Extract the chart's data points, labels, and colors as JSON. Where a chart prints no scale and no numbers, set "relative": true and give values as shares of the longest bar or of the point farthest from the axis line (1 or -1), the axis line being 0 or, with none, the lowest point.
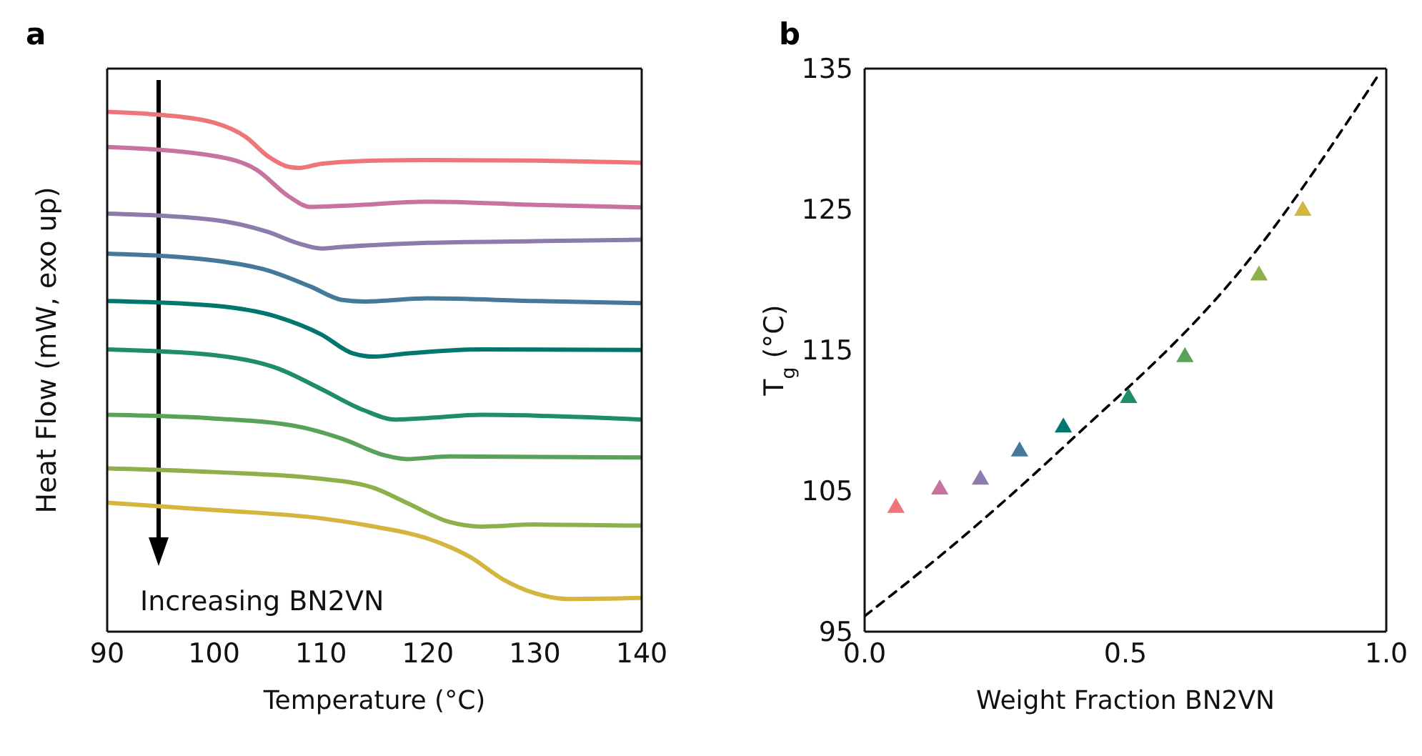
{
  "chart_data": [
    {
      "type": "line",
      "title": "a",
      "xlabel": "Temperature (°C)",
      "ylabel": "Heat Flow (mW, exo up)",
      "relative": true,
      "xlim": [
        90,
        140
      ],
      "xticks": [
        90,
        100,
        110,
        120,
        130,
        140
      ],
      "tick_labels": "x",
      "marker": "none",
      "line_style": "solid",
      "annotations": [
        "Increasing BN2VN"
      ],
      "series": [
        {
          "color": "#ee7579",
          "x": [
            90,
            95,
            100,
            103,
            105,
            107,
            108,
            110,
            115,
            120,
            130,
            140
          ],
          "values": [
            1.0,
            0.994,
            0.979,
            0.951,
            0.915,
            0.894,
            0.892,
            0.9,
            0.906,
            0.907,
            0.906,
            0.902
          ]
        },
        {
          "color": "#c872a0",
          "x": [
            90,
            100,
            104,
            107,
            109,
            112,
            120,
            130,
            140
          ],
          "values": [
            0.932,
            0.915,
            0.888,
            0.837,
            0.817,
            0.819,
            0.827,
            0.821,
            0.816
          ]
        },
        {
          "color": "#8c7cad",
          "x": [
            90,
            100,
            105,
            108,
            110,
            112,
            120,
            130,
            140
          ],
          "values": [
            0.804,
            0.792,
            0.769,
            0.746,
            0.737,
            0.74,
            0.748,
            0.751,
            0.754
          ]
        },
        {
          "color": "#44799a",
          "x": [
            90,
            100,
            105,
            109,
            112,
            114,
            120,
            130,
            140
          ],
          "values": [
            0.727,
            0.714,
            0.695,
            0.664,
            0.638,
            0.635,
            0.641,
            0.636,
            0.632
          ]
        },
        {
          "color": "#00766f",
          "x": [
            90,
            100,
            106,
            110,
            113,
            115,
            118,
            125,
            140
          ],
          "values": [
            0.636,
            0.627,
            0.605,
            0.572,
            0.535,
            0.529,
            0.535,
            0.543,
            0.542
          ]
        },
        {
          "color": "#1f8c6c",
          "x": [
            90,
            100,
            106,
            110,
            114,
            117,
            120,
            125,
            140
          ],
          "values": [
            0.543,
            0.532,
            0.506,
            0.467,
            0.426,
            0.408,
            0.411,
            0.417,
            0.408
          ]
        },
        {
          "color": "#5aa25a",
          "x": [
            90,
            100,
            108,
            112,
            116,
            118,
            122,
            140
          ],
          "values": [
            0.417,
            0.41,
            0.394,
            0.371,
            0.339,
            0.332,
            0.337,
            0.335
          ]
        },
        {
          "color": "#8db04a",
          "x": [
            90,
            100,
            110,
            115,
            118,
            122,
            125,
            130,
            140
          ],
          "values": [
            0.314,
            0.307,
            0.294,
            0.276,
            0.248,
            0.211,
            0.202,
            0.206,
            0.204
          ]
        },
        {
          "color": "#d4b540",
          "x": [
            90,
            100,
            110,
            115,
            120,
            124,
            127,
            130,
            133,
            140
          ],
          "values": [
            0.248,
            0.234,
            0.218,
            0.202,
            0.179,
            0.143,
            0.101,
            0.074,
            0.063,
            0.065
          ]
        }
      ]
    },
    {
      "type": "scatter",
      "title": "b",
      "xlabel": "Weight Fraction BN2VN",
      "ylabel": "T$_{g}$ (°C)",
      "xlim": [
        0,
        1
      ],
      "xticks": [
        {
          "value": 0,
          "label": "0.0"
        },
        {
          "value": 0.5,
          "label": "0.5"
        },
        {
          "value": 1,
          "label": "1.0"
        }
      ],
      "ylim": [
        95,
        135
      ],
      "yticks": [
        95,
        105,
        115,
        125,
        135
      ],
      "series": [
        {
          "type": "scatter",
          "marker": "triangle",
          "x": [
            0.06,
            0.144,
            0.222,
            0.297,
            0.381,
            0.506,
            0.614,
            0.756,
            0.84
          ],
          "values": [
            103.8,
            105.1,
            105.8,
            107.8,
            109.5,
            111.6,
            114.5,
            120.3,
            124.9
          ],
          "colors": [
            "#ee7579",
            "#c872a0",
            "#8c7cad",
            "#44799a",
            "#00766f",
            "#1f8c6c",
            "#5aa25a",
            "#8db04a",
            "#d4b540"
          ]
        },
        {
          "type": "line",
          "marker": "none",
          "line_style": "dashed",
          "color": "#000000",
          "x": [
            0,
            0.181,
            0.381,
            0.741,
            0.986
          ],
          "values": [
            96.1,
            101.5,
            108.1,
            121.6,
            134.6
          ]
        }
      ]
    }
  ]
}
